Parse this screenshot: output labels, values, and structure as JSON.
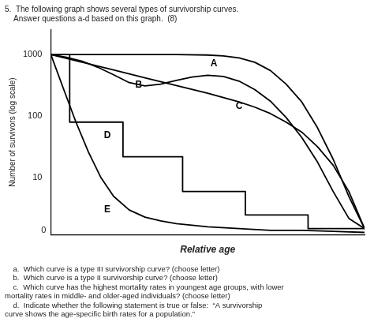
{
  "chart_data": {
    "type": "line",
    "title": [
      "5.  The following graph shows several types of survivorship curves.",
      "    Answer questions a-d based on this graph.  (8)"
    ],
    "subtitle": [
      "    a.  Which curve is a type III survivorship curve? (choose letter)",
      "    b.  Which curve is a type II survivorship curve? (choose letter)",
      "    c.  Which curve has the highest mortality rates in youngest age groups, with lower",
      "mortality rates in middle- and older-aged individuals? (choose letter)",
      "    d.  Indicate whether the following statement is true or false:  “A survivorship",
      "curve shows the age-specific birth rates for a population.”"
    ],
    "xlabel": "Relative age",
    "ylabel": "Number of survivors (log scale)",
    "color": "black",
    "series": [
      {
        "x": [
          0.0,
          0.05,
          0.1,
          0.2,
          0.3,
          0.4,
          0.5,
          0.55,
          0.6,
          0.65,
          0.7,
          0.75,
          0.8,
          0.85,
          0.9,
          0.95,
          1.0
        ],
        "values": [
          1000,
          1000,
          1000,
          1000,
          1000,
          1000,
          980,
          950,
          880,
          750,
          550,
          330,
          170,
          65,
          20,
          5,
          1.5
        ]
      },
      {
        "x": [
          0.0,
          0.05,
          0.1,
          0.15,
          0.2,
          0.25,
          0.3,
          0.35,
          0.4,
          0.45,
          0.5,
          0.55,
          0.6,
          0.65,
          0.7,
          0.75,
          0.8,
          0.85,
          0.9,
          0.95,
          1.0
        ],
        "values": [
          1000,
          900,
          780,
          620,
          470,
          350,
          310,
          330,
          380,
          430,
          460,
          440,
          370,
          270,
          175,
          95,
          45,
          18,
          6,
          2.2,
          1.5
        ]
      },
      {
        "x": [
          0.0,
          0.1,
          0.2,
          0.3,
          0.4,
          0.5,
          0.55,
          0.6,
          0.65,
          0.7,
          0.75,
          0.8,
          0.85,
          0.9,
          0.95,
          1.0
        ],
        "values": [
          1000,
          750,
          560,
          420,
          315,
          236,
          200,
          170,
          140,
          110,
          80,
          55,
          32,
          16,
          6,
          1.5
        ]
      },
      {
        "x": [
          0.0,
          0.06,
          0.06,
          0.23,
          0.23,
          0.42,
          0.42,
          0.62,
          0.62,
          0.82,
          0.82,
          1.0
        ],
        "values": [
          1000,
          1000,
          80,
          80,
          22,
          22,
          6,
          6,
          2.5,
          2.5,
          1.5,
          1.5
        ]
      },
      {
        "x": [
          0.0,
          0.04,
          0.08,
          0.12,
          0.16,
          0.2,
          0.25,
          0.3,
          0.35,
          0.4,
          0.5,
          0.6,
          0.7,
          0.8,
          0.9,
          1.0
        ],
        "values": [
          1000,
          280,
          80,
          26,
          10,
          5,
          3,
          2.3,
          2.0,
          1.8,
          1.6,
          1.5,
          1.4,
          1.4,
          1.35,
          1.3
        ]
      }
    ],
    "xlim": [
      0,
      1.0
    ],
    "xticks": [],
    "ylim": [
      1.2,
      2500
    ],
    "yticks": [
      10,
      100,
      1000
    ],
    "log": "y",
    "grid": false,
    "tick_labels": "y",
    "annotations": [
      {
        "text": "A",
        "x": 0.52,
        "y": 700
      },
      {
        "text": "B",
        "x": 0.28,
        "y": 320
      },
      {
        "text": "C",
        "x": 0.6,
        "y": 145
      },
      {
        "text": "D",
        "x": 0.18,
        "y": 48
      },
      {
        "text": "E",
        "x": 0.18,
        "y": 3.0
      },
      {
        "text": "0"
      }
    ]
  }
}
